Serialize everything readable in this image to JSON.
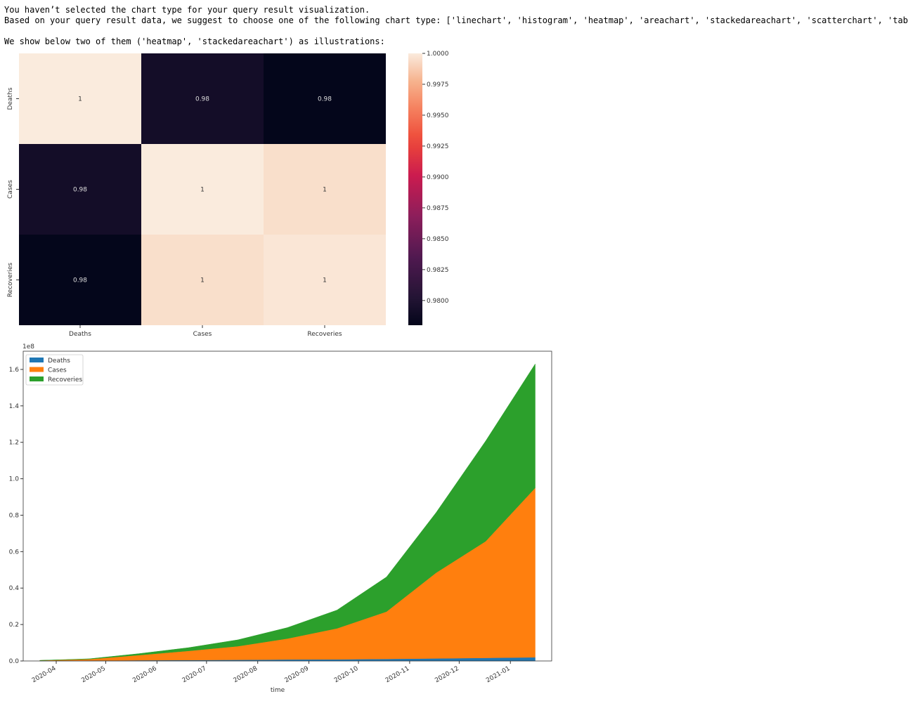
{
  "message": {
    "line1": "You haven’t selected the chart type for your query result visualization.",
    "line2": "Based on your query result data, we suggest to choose one of the following chart type: ['linechart', 'histogram', 'heatmap', 'areachart', 'stackedareachart', 'scatterchart', 'table']",
    "line3": "We show below two of them ('heatmap', 'stackedareachart') as illustrations:"
  },
  "chart_data": [
    {
      "type": "heatmap",
      "labels": [
        "Deaths",
        "Cases",
        "Recoveries"
      ],
      "values": [
        [
          1.0,
          0.9792,
          0.9781
        ],
        [
          0.9792,
          1.0,
          0.9995
        ],
        [
          0.9781,
          0.9995,
          0.9998
        ]
      ],
      "annotations": [
        [
          "1",
          "0.98",
          "0.98"
        ],
        [
          "0.98",
          "1",
          "1"
        ],
        [
          "0.98",
          "1",
          "1"
        ]
      ],
      "colorbar": {
        "vmin": 0.978,
        "vmax": 1.0,
        "ticks": [
          1.0,
          0.9975,
          0.995,
          0.9925,
          0.99,
          0.9875,
          0.985,
          0.9825,
          0.98
        ],
        "tick_labels": [
          "1.0000",
          "0.9975",
          "0.9950",
          "0.9925",
          "0.9900",
          "0.9875",
          "0.9850",
          "0.9825",
          "0.9800"
        ]
      }
    },
    {
      "type": "area",
      "stacked": true,
      "xlabel": "time",
      "ylabel": "",
      "y_scale_label": "1e8",
      "x": [
        "2020-03-22",
        "2020-04-21",
        "2020-05-21",
        "2020-06-20",
        "2020-07-20",
        "2020-08-19",
        "2020-09-18",
        "2020-10-18",
        "2020-11-17",
        "2020-12-17",
        "2021-01-16"
      ],
      "x_ticks": [
        "2020-04",
        "2020-05",
        "2020-06",
        "2020-07",
        "2020-08",
        "2020-09",
        "2020-10",
        "2020-11",
        "2020-12",
        "2021-01"
      ],
      "xlim": [
        "2020-03-12",
        "2021-01-26"
      ],
      "ylim": [
        0,
        1.7
      ],
      "y_ticks": [
        "0.0",
        "0.2",
        "0.4",
        "0.6",
        "0.8",
        "1.0",
        "1.2",
        "1.4",
        "1.6"
      ],
      "legend_position": "upper-left",
      "series": [
        {
          "name": "Deaths",
          "color": "#1f77b4",
          "values": [
            0.001,
            0.002,
            0.004,
            0.005,
            0.006,
            0.008,
            0.009,
            0.011,
            0.014,
            0.017,
            0.02
          ]
        },
        {
          "name": "Cases",
          "color": "#ff7f0e",
          "values": [
            0.002,
            0.008,
            0.028,
            0.05,
            0.075,
            0.115,
            0.17,
            0.26,
            0.47,
            0.64,
            0.93
          ]
        },
        {
          "name": "Recoveries",
          "color": "#2ca02c",
          "values": [
            0.0,
            0.002,
            0.008,
            0.018,
            0.035,
            0.06,
            0.1,
            0.19,
            0.33,
            0.55,
            0.68
          ]
        }
      ]
    }
  ]
}
